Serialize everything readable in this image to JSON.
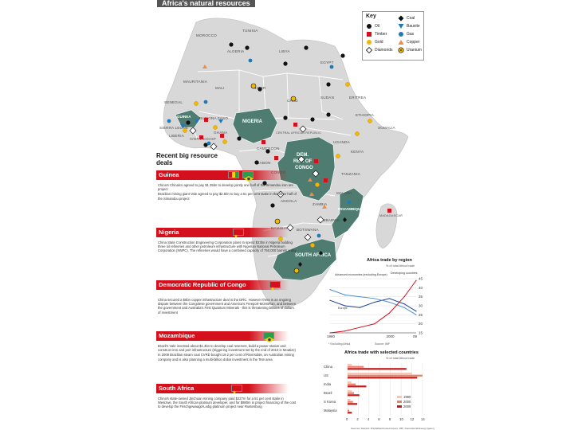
{
  "title": "Africa's natural resources",
  "key": {
    "title": "Key",
    "items": [
      {
        "label": "Oil",
        "icon": "oil-icon",
        "color": "#111111"
      },
      {
        "label": "Gold",
        "icon": "gold-icon",
        "color": "#f2b705"
      },
      {
        "label": "Diamonds",
        "icon": "diamond-icon",
        "color": "#ffffff"
      },
      {
        "label": "Timber",
        "icon": "timber-icon",
        "color": "#d3101b"
      },
      {
        "label": "Coal",
        "icon": "coal-icon",
        "color": "#111111"
      },
      {
        "label": "Bauxite",
        "icon": "bauxite-icon",
        "color": "#1f7ab5"
      },
      {
        "label": "Gas",
        "icon": "gas-icon",
        "color": "#1f7ab5"
      },
      {
        "label": "Copper",
        "icon": "copper-icon",
        "color": "#f08a4b"
      },
      {
        "label": "Uranium",
        "icon": "uranium-icon",
        "color": "#f2b705"
      }
    ]
  },
  "map": {
    "highlighted": [
      {
        "name": "NIGERIA"
      },
      {
        "name": "DEM. REP. OF CONGO",
        "lines": [
          "DEM.",
          "REP. OF",
          "CONGO"
        ]
      },
      {
        "name": "MOZAMBIQUE"
      },
      {
        "name": "SOUTH AFRICA"
      },
      {
        "name": "GUINEA"
      }
    ],
    "countries": [
      "ALGERIA",
      "LIBYA",
      "EGYPT",
      "MAURITANIA",
      "MALI",
      "NIGER",
      "CHAD",
      "SUDAN",
      "ETHIOPIA",
      "SOMALIA",
      "KENYA",
      "TANZANIA",
      "ANGOLA",
      "ZAMBIA",
      "NAMIBIA",
      "BOTSWANA",
      "MADAGASCAR",
      "ZIMBABWE",
      "CAMEROON",
      "GABON",
      "CENTRAL AFRICAN REPUBLIC",
      "GHANA",
      "SIERRA LEONE",
      "LIBERIA",
      "MOROCCO",
      "TUNISIA",
      "SENEGAL",
      "CONGO",
      "UGANDA",
      "MALAWI",
      "IVORY COAST",
      "BURKINA FASO",
      "ERITREA"
    ],
    "colors": {
      "land": "#d8d8d8",
      "highlight": "#4f7c70",
      "sea": "#ffffff",
      "border": "#ffffff"
    }
  },
  "deals": {
    "heading": "Recent big resource deals",
    "sections": [
      {
        "country": "Guinea",
        "paragraphs": [
          "China's Chinalco agreed to pay $1.35bn to develop jointly one half of the Simandou iron ore project",
          "Brazilian mining giant Vale agreed to pay $2.5bn to buy a 51 per cent stake in the other half of the Simandou project"
        ]
      },
      {
        "country": "Nigeria",
        "paragraphs": [
          "China State Construction Engineering Corporation plans to spend $23bn in Nigeria building three oil refineries and other petroleum infrastructure with Nigerian National Petroleum Corporation (NNPC). The refineries would have a combined capacity of 750,000 barrels a day"
        ]
      },
      {
        "country": "Democratic Republic of Congo",
        "paragraphs": [
          "China secured a $6bn copper infrastructure deal in the DRC. However there is an ongoing dispute between the Congolese government and America's Freeport-McMoRan, and between the government and Australia's First Quantum Minerals - this is threatening billions of dollars of investment"
        ]
      },
      {
        "country": "Mozambique",
        "paragraphs": [
          "Brazil's Vale invested about $1.3bn to develop coal reserves, build a power station and construct iron and port infrastructure (triggering investment set by the end of 2010 in Moatize)",
          "In 2009 Brazilian steam coal CVRD bought 19.2 per cent of Riversdale, an Australian mining company and is also planning a multi-billion dollar investment in the Tete area"
        ]
      },
      {
        "country": "South Africa",
        "paragraphs": [
          "China's state-owned Jinchuan mining company paid $227m for a 51 per cent stake in Wesizwe, the South African platinum developer, and for $880m in project financing of the cost to develop the Frischgewaagd-Ledig platinum project near Rustenburg"
        ]
      }
    ]
  },
  "chart_data": [
    {
      "type": "line",
      "title": "Africa trade by region",
      "subtitle": "% of total Africa trade",
      "x": [
        1980,
        1985,
        1990,
        1995,
        2000,
        2005,
        2009
      ],
      "series": [
        {
          "name": "Advanced economies (excluding Europe)",
          "values": [
            33,
            30,
            29,
            32,
            34,
            31,
            27
          ]
        },
        {
          "name": "Europe",
          "values": [
            39,
            36,
            35,
            34,
            32,
            29,
            25
          ]
        },
        {
          "name": "Developing countries",
          "values": [
            15,
            16,
            18,
            20,
            26,
            35,
            44
          ]
        }
      ],
      "ylim": [
        15,
        45
      ],
      "yticks": [
        "45",
        "40",
        "35",
        "30",
        "25",
        "20",
        "15"
      ],
      "xticks": [
        "1980",
        "2000",
        "09"
      ],
      "annotations": [
        "Advanced economies (excluding Europe)",
        "Developing countries",
        "Europe"
      ],
      "note": "* Excluding Africa",
      "source": "Source: IMF"
    },
    {
      "type": "bar",
      "title": "Africa trade with selected countries",
      "subtitle": "% of total Africa trade",
      "categories": [
        "China",
        "US",
        "India",
        "Brazil",
        "S Korea",
        "Malaysia"
      ],
      "series": [
        {
          "name": "1990",
          "values": [
            0.8,
            12,
            0.7,
            0.8,
            0.5,
            0.1
          ]
        },
        {
          "name": "2000",
          "values": [
            3,
            14,
            1.5,
            1.2,
            1.0,
            0.3
          ]
        },
        {
          "name": "2009",
          "values": [
            11,
            13,
            3.5,
            2.2,
            1.8,
            0.8
          ]
        }
      ],
      "xlim": [
        0,
        14
      ],
      "xticks": [
        "0",
        "2",
        "4",
        "6",
        "8",
        "10",
        "12",
        "14"
      ],
      "colors": {
        "1990": "#f7c5b6",
        "2000": "#e8826a",
        "2009": "#c41a1a"
      }
    }
  ],
  "footer": "Sources: Reuters; PriceWaterhouseCoopers; IMF; International Energy Agency"
}
